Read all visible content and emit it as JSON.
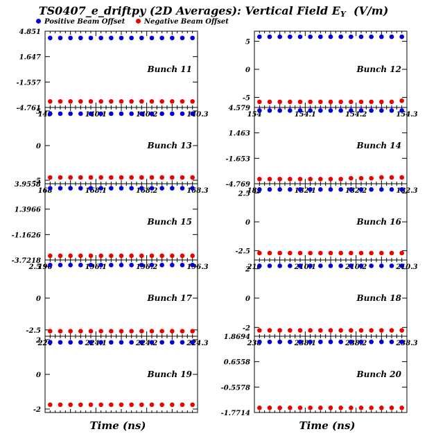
{
  "title": {
    "main": "TS0407_e_driftpy (2D Averages): Vertical Field E",
    "sub": "Y",
    "unit": "(V/m)"
  },
  "legend": [
    {
      "name": "Positive Beam Offset",
      "color": "#0000dd"
    },
    {
      "name": "Negative Beam Offset",
      "color": "#ee0000"
    }
  ],
  "xlabels": {
    "left": "Time (ns)",
    "right": "Time (ns)"
  },
  "chart_data": [
    {
      "type": "scatter",
      "label": "Bunch 11",
      "xlim": [
        140,
        140.3
      ],
      "xticks": [
        "140",
        "140.1",
        "140.2",
        "140.3"
      ],
      "yticks": [
        {
          "v": 4.851,
          "t": "4.851"
        },
        {
          "v": 1.647,
          "t": "1.647"
        },
        {
          "v": -1.557,
          "t": "-1.557"
        },
        {
          "v": -4.761,
          "t": "-4.761"
        }
      ],
      "ylim": [
        -4.761,
        4.851
      ],
      "x": [
        140.01,
        140.03,
        140.05,
        140.07,
        140.09,
        140.11,
        140.13,
        140.15,
        140.17,
        140.19,
        140.21,
        140.23,
        140.25,
        140.27,
        140.29
      ],
      "series": [
        {
          "name": "Positive Beam Offset",
          "values": [
            4.0,
            4.0,
            4.0,
            4.0,
            4.0,
            4.0,
            4.0,
            4.0,
            4.0,
            4.0,
            4.0,
            4.0,
            4.0,
            4.0,
            4.0
          ]
        },
        {
          "name": "Negative Beam Offset",
          "values": [
            -4.0,
            -4.0,
            -4.0,
            -4.0,
            -4.0,
            -4.0,
            -4.0,
            -4.0,
            -4.0,
            -4.0,
            -4.0,
            -4.0,
            -4.0,
            -4.0,
            -4.0
          ]
        }
      ]
    },
    {
      "type": "scatter",
      "label": "Bunch 12",
      "xlim": [
        154,
        154.3
      ],
      "xticks": [
        "154",
        "154.1",
        "154.2",
        "154.3"
      ],
      "yticks": [
        {
          "v": 5,
          "t": "5"
        },
        {
          "v": 0,
          "t": "0"
        },
        {
          "v": -5,
          "t": "-5"
        }
      ],
      "ylim": [
        -6.8,
        6.8
      ],
      "x": [
        154.01,
        154.03,
        154.05,
        154.07,
        154.09,
        154.11,
        154.13,
        154.15,
        154.17,
        154.19,
        154.21,
        154.23,
        154.25,
        154.27,
        154.29
      ],
      "series": [
        {
          "name": "Positive Beam Offset",
          "values": [
            5.8,
            5.8,
            5.8,
            5.8,
            5.8,
            5.8,
            5.8,
            5.8,
            5.8,
            5.8,
            5.8,
            5.8,
            5.8,
            5.8,
            5.8
          ]
        },
        {
          "name": "Negative Beam Offset",
          "values": [
            -5.8,
            -5.8,
            -5.8,
            -5.8,
            -5.8,
            -5.8,
            -5.8,
            -5.8,
            -5.8,
            -5.8,
            -5.8,
            -5.8,
            -5.8,
            -5.8,
            -5.6
          ]
        }
      ]
    },
    {
      "type": "scatter",
      "label": "Bunch 13",
      "xlim": [
        168,
        168.3
      ],
      "xticks": [
        "168",
        "168.1",
        "168.2",
        "168.3"
      ],
      "yticks": [
        {
          "v": 5,
          "t": "5"
        },
        {
          "v": 0,
          "t": "0"
        },
        {
          "v": -5,
          "t": "-5"
        }
      ],
      "ylim": [
        -5.5,
        5.5
      ],
      "x": [
        168.01,
        168.03,
        168.05,
        168.07,
        168.09,
        168.11,
        168.13,
        168.15,
        168.17,
        168.19,
        168.21,
        168.23,
        168.25,
        168.27,
        168.29
      ],
      "series": [
        {
          "name": "Positive Beam Offset",
          "values": [
            4.6,
            4.6,
            4.6,
            4.6,
            4.6,
            4.6,
            4.6,
            4.6,
            4.6,
            4.6,
            4.6,
            4.6,
            4.6,
            4.6,
            4.6
          ]
        },
        {
          "name": "Negative Beam Offset",
          "values": [
            -4.6,
            -4.6,
            -4.6,
            -4.6,
            -4.6,
            -4.6,
            -4.6,
            -4.6,
            -4.6,
            -4.6,
            -4.6,
            -4.6,
            -4.6,
            -4.6,
            -4.6
          ]
        }
      ]
    },
    {
      "type": "scatter",
      "label": "Bunch 14",
      "xlim": [
        182,
        182.3
      ],
      "xticks": [
        "182",
        "182.1",
        "182.2",
        "182.3"
      ],
      "yticks": [
        {
          "v": 4.579,
          "t": "4.579"
        },
        {
          "v": 1.463,
          "t": "1.463"
        },
        {
          "v": -1.653,
          "t": "-1.653"
        },
        {
          "v": -4.769,
          "t": "-4.769"
        }
      ],
      "ylim": [
        -4.769,
        4.579
      ],
      "x": [
        182.01,
        182.03,
        182.05,
        182.07,
        182.09,
        182.11,
        182.13,
        182.15,
        182.17,
        182.19,
        182.21,
        182.23,
        182.25,
        182.27,
        182.29
      ],
      "series": [
        {
          "name": "Positive Beam Offset",
          "values": [
            4.2,
            4.2,
            4.2,
            4.2,
            4.2,
            4.2,
            4.2,
            4.2,
            4.2,
            4.2,
            4.2,
            4.2,
            4.2,
            4.2,
            4.2
          ]
        },
        {
          "name": "Negative Beam Offset",
          "values": [
            -4.2,
            -4.2,
            -4.2,
            -4.2,
            -4.2,
            -4.2,
            -4.2,
            -4.2,
            -4.2,
            -4.1,
            -4.1,
            -4.1,
            -4.0,
            -4.0,
            -4.0
          ]
        }
      ]
    },
    {
      "type": "scatter",
      "label": "Bunch 15",
      "xlim": [
        196,
        196.3
      ],
      "xticks": [
        "196",
        "196.1",
        "196.2",
        "196.3"
      ],
      "yticks": [
        {
          "v": 3.9558,
          "t": "3.9558"
        },
        {
          "v": 1.3966,
          "t": "1.3966"
        },
        {
          "v": -1.1626,
          "t": "-1.1626"
        },
        {
          "v": -3.7218,
          "t": "-3.7218"
        }
      ],
      "ylim": [
        -3.7218,
        3.9558
      ],
      "x": [
        196.01,
        196.03,
        196.05,
        196.07,
        196.09,
        196.11,
        196.13,
        196.15,
        196.17,
        196.19,
        196.21,
        196.23,
        196.25,
        196.27,
        196.29
      ],
      "series": [
        {
          "name": "Positive Beam Offset",
          "values": [
            3.5,
            3.5,
            3.5,
            3.5,
            3.5,
            3.5,
            3.5,
            3.5,
            3.5,
            3.5,
            3.5,
            3.5,
            3.5,
            3.5,
            3.5
          ]
        },
        {
          "name": "Negative Beam Offset",
          "values": [
            -3.3,
            -3.3,
            -3.3,
            -3.3,
            -3.3,
            -3.3,
            -3.3,
            -3.3,
            -3.3,
            -3.3,
            -3.3,
            -3.3,
            -3.3,
            -3.3,
            -3.3
          ]
        }
      ]
    },
    {
      "type": "scatter",
      "label": "Bunch 16",
      "xlim": [
        210,
        210.3
      ],
      "xticks": [
        "210",
        "210.1",
        "210.2",
        "210.3"
      ],
      "yticks": [
        {
          "v": 2.5,
          "t": "2.5"
        },
        {
          "v": 0,
          "t": "0"
        },
        {
          "v": -2.5,
          "t": "-2.5"
        }
      ],
      "ylim": [
        -3.3,
        3.3
      ],
      "x": [
        210.01,
        210.03,
        210.05,
        210.07,
        210.09,
        210.11,
        210.13,
        210.15,
        210.17,
        210.19,
        210.21,
        210.23,
        210.25,
        210.27,
        210.29
      ],
      "series": [
        {
          "name": "Positive Beam Offset",
          "values": [
            2.8,
            2.8,
            2.8,
            2.8,
            2.8,
            2.8,
            2.8,
            2.8,
            2.8,
            2.8,
            2.8,
            2.8,
            2.8,
            2.8,
            2.8
          ]
        },
        {
          "name": "Negative Beam Offset",
          "values": [
            -2.7,
            -2.7,
            -2.7,
            -2.7,
            -2.7,
            -2.7,
            -2.7,
            -2.7,
            -2.7,
            -2.7,
            -2.7,
            -2.7,
            -2.7,
            -2.7,
            -2.7
          ]
        }
      ]
    },
    {
      "type": "scatter",
      "label": "Bunch 17",
      "xlim": [
        224,
        224.3
      ],
      "xticks": [
        "224",
        "224.1",
        "224.2",
        "224.3"
      ],
      "yticks": [
        {
          "v": 2.5,
          "t": "2.5"
        },
        {
          "v": 0,
          "t": "0"
        },
        {
          "v": -2.5,
          "t": "-2.5"
        }
      ],
      "ylim": [
        -3.0,
        3.0
      ],
      "x": [
        224.01,
        224.03,
        224.05,
        224.07,
        224.09,
        224.11,
        224.13,
        224.15,
        224.17,
        224.19,
        224.21,
        224.23,
        224.25,
        224.27,
        224.29
      ],
      "series": [
        {
          "name": "Positive Beam Offset",
          "values": [
            2.6,
            2.6,
            2.6,
            2.6,
            2.6,
            2.6,
            2.6,
            2.6,
            2.6,
            2.6,
            2.6,
            2.6,
            2.6,
            2.6,
            2.6
          ]
        },
        {
          "name": "Negative Beam Offset",
          "values": [
            -2.6,
            -2.6,
            -2.6,
            -2.6,
            -2.6,
            -2.6,
            -2.6,
            -2.6,
            -2.6,
            -2.6,
            -2.6,
            -2.6,
            -2.6,
            -2.6,
            -2.6
          ]
        }
      ]
    },
    {
      "type": "scatter",
      "label": "Bunch 18",
      "xlim": [
        238,
        238.3
      ],
      "xticks": [
        "238",
        "238.1",
        "238.2",
        "238.3"
      ],
      "yticks": [
        {
          "v": 2,
          "t": "2"
        },
        {
          "v": 0,
          "t": "0"
        },
        {
          "v": -2,
          "t": "-2"
        }
      ],
      "ylim": [
        -2.6,
        2.6
      ],
      "x": [
        238.01,
        238.03,
        238.05,
        238.07,
        238.09,
        238.11,
        238.13,
        238.15,
        238.17,
        238.19,
        238.21,
        238.23,
        238.25,
        238.27,
        238.29
      ],
      "series": [
        {
          "name": "Positive Beam Offset",
          "values": [
            2.2,
            2.2,
            2.2,
            2.2,
            2.2,
            2.2,
            2.2,
            2.2,
            2.2,
            2.2,
            2.2,
            2.2,
            2.2,
            2.2,
            2.2
          ]
        },
        {
          "name": "Negative Beam Offset",
          "values": [
            -2.2,
            -2.2,
            -2.2,
            -2.2,
            -2.2,
            -2.2,
            -2.2,
            -2.2,
            -2.2,
            -2.2,
            -2.2,
            -2.2,
            -2.2,
            -2.2,
            -2.2
          ]
        }
      ]
    },
    {
      "type": "scatter",
      "label": "Bunch 19",
      "xlim": [
        252,
        252.3
      ],
      "xticks": [
        "252",
        "252.1",
        "252.2",
        "252.3"
      ],
      "yticks": [
        {
          "v": 2,
          "t": "2"
        },
        {
          "v": 0,
          "t": "0"
        },
        {
          "v": -2,
          "t": "-2"
        }
      ],
      "ylim": [
        -2.2,
        2.2
      ],
      "x": [
        252.01,
        252.03,
        252.05,
        252.07,
        252.09,
        252.11,
        252.13,
        252.15,
        252.17,
        252.19,
        252.21,
        252.23,
        252.25,
        252.27,
        252.29
      ],
      "series": [
        {
          "name": "Positive Beam Offset",
          "values": [
            1.85,
            1.85,
            1.85,
            1.85,
            1.85,
            1.85,
            1.85,
            1.85,
            1.85,
            1.85,
            1.85,
            1.85,
            1.85,
            1.85,
            1.85
          ]
        },
        {
          "name": "Negative Beam Offset",
          "values": [
            -1.75,
            -1.75,
            -1.75,
            -1.75,
            -1.75,
            -1.75,
            -1.75,
            -1.75,
            -1.75,
            -1.75,
            -1.75,
            -1.75,
            -1.75,
            -1.75,
            -1.75
          ]
        }
      ]
    },
    {
      "type": "scatter",
      "label": "Bunch 20",
      "xlim": [
        266,
        266.3
      ],
      "xticks": [
        "266",
        "266.1",
        "266.2",
        "266.3"
      ],
      "yticks": [
        {
          "v": 1.8694,
          "t": "1.8694"
        },
        {
          "v": 0.6558,
          "t": "0.6558"
        },
        {
          "v": -0.5578,
          "t": "-0.5578"
        },
        {
          "v": -1.7714,
          "t": "-1.7714"
        }
      ],
      "ylim": [
        -1.7714,
        1.8694
      ],
      "x": [
        266.01,
        266.03,
        266.05,
        266.07,
        266.09,
        266.11,
        266.13,
        266.15,
        266.17,
        266.19,
        266.21,
        266.23,
        266.25,
        266.27,
        266.29
      ],
      "series": [
        {
          "name": "Positive Beam Offset",
          "values": [
            1.6,
            1.6,
            1.6,
            1.6,
            1.6,
            1.6,
            1.6,
            1.6,
            1.6,
            1.6,
            1.6,
            1.6,
            1.6,
            1.6,
            1.6
          ]
        },
        {
          "name": "Negative Beam Offset",
          "values": [
            -1.55,
            -1.55,
            -1.55,
            -1.55,
            -1.55,
            -1.55,
            -1.55,
            -1.55,
            -1.55,
            -1.55,
            -1.55,
            -1.55,
            -1.55,
            -1.55,
            -1.55
          ]
        }
      ]
    }
  ]
}
